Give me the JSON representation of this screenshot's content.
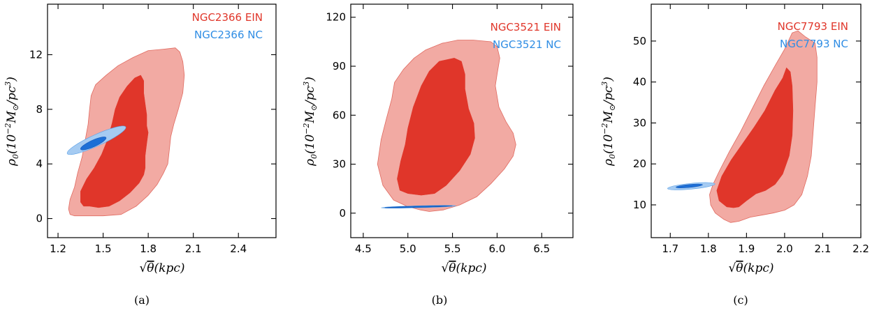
{
  "colors": {
    "ein_outer": "#f2aaa3",
    "ein_inner": "#e0362a",
    "ein_edge": "#e06a60",
    "nc_outer": "#a5cbf2",
    "nc_inner": "#1d6fd6",
    "ein_legend": "#e0362a",
    "nc_legend": "#2f8de4"
  },
  "chart_data": [
    {
      "type": "contour",
      "panel": "(a)",
      "caption": "(a)",
      "xlabel": "√θ (kpc)",
      "ylabel": "ρ0 (10^-2 M⊙/pc^3)",
      "xlim": [
        1.13,
        2.65
      ],
      "ylim": [
        -1.4,
        15.7
      ],
      "xticks": [
        1.2,
        1.5,
        1.8,
        2.1,
        2.4
      ],
      "xtick_labels": [
        "1.2",
        "1.5",
        "1.8",
        "2.1",
        "2.4"
      ],
      "yticks": [
        0,
        4,
        8,
        12
      ],
      "ytick_labels": [
        "0",
        "4",
        "8",
        "12"
      ],
      "legend": [
        "NGC2366 EIN",
        "NGC2366 NC"
      ],
      "legend_position": "top-right",
      "series": [
        {
          "name": "NGC2366 EIN",
          "level": "outer",
          "color": "#f2aaa3",
          "points": [
            [
              1.34,
              0.2
            ],
            [
              1.31,
              0.2
            ],
            [
              1.28,
              0.3
            ],
            [
              1.27,
              0.7
            ],
            [
              1.28,
              1.4
            ],
            [
              1.31,
              2.3
            ],
            [
              1.33,
              3.3
            ],
            [
              1.36,
              4.5
            ],
            [
              1.38,
              5.7
            ],
            [
              1.4,
              6.9
            ],
            [
              1.41,
              8.0
            ],
            [
              1.42,
              9.0
            ],
            [
              1.45,
              9.8
            ],
            [
              1.52,
              10.5
            ],
            [
              1.6,
              11.2
            ],
            [
              1.7,
              11.8
            ],
            [
              1.8,
              12.3
            ],
            [
              1.9,
              12.4
            ],
            [
              1.98,
              12.5
            ],
            [
              2.01,
              12.2
            ],
            [
              2.03,
              11.5
            ],
            [
              2.04,
              10.5
            ],
            [
              2.03,
              9.2
            ],
            [
              2.0,
              8.0
            ],
            [
              1.97,
              6.9
            ],
            [
              1.95,
              6.0
            ],
            [
              1.94,
              5.0
            ],
            [
              1.93,
              4.0
            ],
            [
              1.9,
              3.3
            ],
            [
              1.86,
              2.5
            ],
            [
              1.8,
              1.7
            ],
            [
              1.72,
              0.9
            ],
            [
              1.62,
              0.3
            ],
            [
              1.5,
              0.2
            ],
            [
              1.4,
              0.2
            ],
            [
              1.34,
              0.2
            ]
          ]
        },
        {
          "name": "NGC2366 EIN",
          "level": "inner",
          "color": "#e0362a",
          "points": [
            [
              1.41,
              0.9
            ],
            [
              1.37,
              0.9
            ],
            [
              1.35,
              1.2
            ],
            [
              1.35,
              2.0
            ],
            [
              1.39,
              2.9
            ],
            [
              1.44,
              3.7
            ],
            [
              1.49,
              4.7
            ],
            [
              1.53,
              5.8
            ],
            [
              1.56,
              7.0
            ],
            [
              1.58,
              8.0
            ],
            [
              1.61,
              8.9
            ],
            [
              1.66,
              9.7
            ],
            [
              1.71,
              10.3
            ],
            [
              1.75,
              10.5
            ],
            [
              1.77,
              10.1
            ],
            [
              1.77,
              9.2
            ],
            [
              1.78,
              8.4
            ],
            [
              1.79,
              7.6
            ],
            [
              1.79,
              6.8
            ],
            [
              1.8,
              6.3
            ],
            [
              1.79,
              5.5
            ],
            [
              1.78,
              4.6
            ],
            [
              1.78,
              3.7
            ],
            [
              1.77,
              3.2
            ],
            [
              1.74,
              2.6
            ],
            [
              1.68,
              1.9
            ],
            [
              1.61,
              1.3
            ],
            [
              1.54,
              0.9
            ],
            [
              1.47,
              0.8
            ],
            [
              1.41,
              0.9
            ]
          ]
        },
        {
          "name": "NGC2366 NC",
          "level": "outer",
          "color": "#a5cbf2",
          "ellipse": {
            "cx": 1.456,
            "cy": 5.73,
            "half_length": 0.214,
            "half_width": 0.42,
            "angle_deg": -24.5
          }
        },
        {
          "name": "NGC2366 NC",
          "level": "inner",
          "color": "#1d6fd6",
          "ellipse": {
            "cx": 1.435,
            "cy": 5.5,
            "half_length": 0.093,
            "half_width": 0.24,
            "angle_deg": -24.5
          }
        }
      ]
    },
    {
      "type": "contour",
      "panel": "(b)",
      "caption": "(b)",
      "xlabel": "√θ (kpc)",
      "ylabel": "ρ0 (10^-2 M⊙/pc^3)",
      "xlim": [
        4.36,
        6.85
      ],
      "ylim": [
        -15.0,
        128.0
      ],
      "xticks": [
        4.5,
        5.0,
        5.5,
        6.0,
        6.5
      ],
      "xtick_labels": [
        "4.5",
        "5.0",
        "5.5",
        "6.0",
        "6.5"
      ],
      "yticks": [
        0,
        30,
        60,
        90,
        120
      ],
      "ytick_labels": [
        "0",
        "30",
        "60",
        "90",
        "120"
      ],
      "legend": [
        "NGC3521 EIN",
        "NGC3521 NC"
      ],
      "legend_position": "top-right",
      "series": [
        {
          "name": "NGC3521 EIN",
          "level": "outer",
          "color": "#f2aaa3",
          "points": [
            [
              5.24,
              1
            ],
            [
              5.14,
              2
            ],
            [
              5.0,
              4
            ],
            [
              4.84,
              8
            ],
            [
              4.72,
              17
            ],
            [
              4.66,
              30
            ],
            [
              4.7,
              45
            ],
            [
              4.76,
              58
            ],
            [
              4.82,
              70
            ],
            [
              4.85,
              80
            ],
            [
              4.95,
              88
            ],
            [
              5.07,
              95
            ],
            [
              5.2,
              100
            ],
            [
              5.38,
              104
            ],
            [
              5.56,
              106
            ],
            [
              5.73,
              106
            ],
            [
              5.93,
              105
            ],
            [
              6.0,
              102
            ],
            [
              6.03,
              95
            ],
            [
              6.0,
              85
            ],
            [
              5.98,
              78
            ],
            [
              6.02,
              65
            ],
            [
              6.1,
              56
            ],
            [
              6.18,
              49
            ],
            [
              6.21,
              42
            ],
            [
              6.18,
              35
            ],
            [
              6.08,
              27
            ],
            [
              5.93,
              18
            ],
            [
              5.77,
              10
            ],
            [
              5.58,
              5
            ],
            [
              5.4,
              2
            ],
            [
              5.24,
              1
            ]
          ]
        },
        {
          "name": "NGC3521 EIN",
          "level": "inner",
          "color": "#e0362a",
          "points": [
            [
              5.0,
              12
            ],
            [
              4.91,
              14
            ],
            [
              4.88,
              21
            ],
            [
              4.92,
              32
            ],
            [
              4.97,
              42
            ],
            [
              5.0,
              52
            ],
            [
              5.06,
              65
            ],
            [
              5.15,
              78
            ],
            [
              5.24,
              87
            ],
            [
              5.35,
              93
            ],
            [
              5.52,
              95
            ],
            [
              5.6,
              93
            ],
            [
              5.64,
              85
            ],
            [
              5.64,
              76
            ],
            [
              5.68,
              64
            ],
            [
              5.74,
              55
            ],
            [
              5.75,
              46
            ],
            [
              5.7,
              36
            ],
            [
              5.58,
              26
            ],
            [
              5.43,
              17
            ],
            [
              5.3,
              12
            ],
            [
              5.15,
              11
            ],
            [
              5.0,
              12
            ]
          ]
        },
        {
          "name": "NGC3521 NC",
          "level": "outer",
          "color": "#a5cbf2",
          "ellipse": {
            "cx": 5.12,
            "cy": 3.9,
            "half_length": 0.42,
            "half_width": 0.6,
            "angle_deg": -1.5
          }
        },
        {
          "name": "NGC3521 NC",
          "level": "inner",
          "color": "#1d6fd6",
          "ellipse": {
            "cx": 5.12,
            "cy": 3.9,
            "half_length": 0.38,
            "half_width": 0.4,
            "angle_deg": -1.5
          }
        }
      ]
    },
    {
      "type": "contour",
      "panel": "(c)",
      "caption": "(c)",
      "xlabel": "√θ (kpc)",
      "ylabel": "ρ0 (10^-2 M⊙/pc^3)",
      "xlim": [
        1.65,
        2.2
      ],
      "ylim": [
        2.0,
        59.0
      ],
      "xticks": [
        1.7,
        1.8,
        1.9,
        2.0,
        2.1,
        2.2
      ],
      "xtick_labels": [
        "1.7",
        "1.8",
        "1.9",
        "2.0",
        "2.1",
        "2.2"
      ],
      "yticks": [
        10,
        20,
        30,
        40,
        50
      ],
      "ytick_labels": [
        "10",
        "20",
        "30",
        "40",
        "50"
      ],
      "legend": [
        "NGC7793 EIN",
        "NGC7793 NC"
      ],
      "legend_position": "top-right",
      "series": [
        {
          "name": "NGC7793 EIN",
          "level": "outer",
          "color": "#f2aaa3",
          "points": [
            [
              1.858,
              5.7
            ],
            [
              1.84,
              6.5
            ],
            [
              1.818,
              8.0
            ],
            [
              1.806,
              10.0
            ],
            [
              1.803,
              12.5
            ],
            [
              1.812,
              15.0
            ],
            [
              1.83,
              18.5
            ],
            [
              1.855,
              23.0
            ],
            [
              1.885,
              28.0
            ],
            [
              1.915,
              33.5
            ],
            [
              1.945,
              39.0
            ],
            [
              1.975,
              44.0
            ],
            [
              2.0,
              48.0
            ],
            [
              2.02,
              52.0
            ],
            [
              2.035,
              52.5
            ],
            [
              2.055,
              51.0
            ],
            [
              2.08,
              49.5
            ],
            [
              2.085,
              46.0
            ],
            [
              2.085,
              40.0
            ],
            [
              2.08,
              34.0
            ],
            [
              2.075,
              28.0
            ],
            [
              2.07,
              22.0
            ],
            [
              2.06,
              17.0
            ],
            [
              2.045,
              12.5
            ],
            [
              2.025,
              10.0
            ],
            [
              2.0,
              8.7
            ],
            [
              1.97,
              8.0
            ],
            [
              1.94,
              7.5
            ],
            [
              1.91,
              7.0
            ],
            [
              1.88,
              6.0
            ],
            [
              1.858,
              5.7
            ]
          ]
        },
        {
          "name": "NGC7793 EIN",
          "level": "inner",
          "color": "#e0362a",
          "points": [
            [
              1.866,
              9.3
            ],
            [
              1.848,
              9.5
            ],
            [
              1.828,
              11.0
            ],
            [
              1.822,
              13.5
            ],
            [
              1.835,
              17.0
            ],
            [
              1.86,
              21.0
            ],
            [
              1.89,
              25.0
            ],
            [
              1.92,
              29.0
            ],
            [
              1.948,
              33.0
            ],
            [
              1.975,
              38.0
            ],
            [
              1.995,
              41.0
            ],
            [
              2.005,
              43.5
            ],
            [
              2.015,
              42.5
            ],
            [
              2.02,
              39.0
            ],
            [
              2.022,
              33.0
            ],
            [
              2.02,
              27.0
            ],
            [
              2.012,
              22.0
            ],
            [
              1.995,
              17.5
            ],
            [
              1.975,
              15.0
            ],
            [
              1.95,
              13.5
            ],
            [
              1.925,
              12.7
            ],
            [
              1.9,
              11.0
            ],
            [
              1.88,
              9.5
            ],
            [
              1.866,
              9.3
            ]
          ]
        },
        {
          "name": "NGC7793 NC",
          "level": "outer",
          "color": "#a5cbf2",
          "ellipse": {
            "cx": 1.755,
            "cy": 14.55,
            "half_length": 0.0625,
            "half_width": 0.7,
            "angle_deg": -5.5
          }
        },
        {
          "name": "NGC7793 NC",
          "level": "inner",
          "color": "#1d6fd6",
          "ellipse": {
            "cx": 1.75,
            "cy": 14.6,
            "half_length": 0.035,
            "half_width": 0.35,
            "angle_deg": -5.5
          }
        }
      ]
    }
  ]
}
